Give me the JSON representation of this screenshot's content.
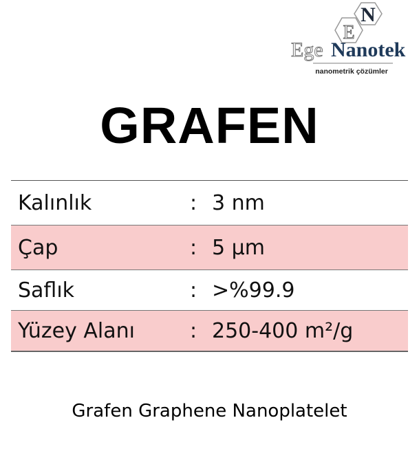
{
  "logo": {
    "text_ege": "Ege",
    "text_nanotek": "Nanotek",
    "tagline": "nanometrik çözümler",
    "letter_e": "E",
    "letter_n": "N",
    "color_navy": "#1f3a5a",
    "color_gray": "#888888"
  },
  "title": "GRAFEN",
  "specs": [
    {
      "label": "Kalınlık",
      "separator": ":",
      "value": "3 nm"
    },
    {
      "label": "Çap",
      "separator": ":",
      "value": "5 µm"
    },
    {
      "label": "Saflık",
      "separator": ":",
      "value": ">%99.9"
    },
    {
      "label": "Yüzey Alanı",
      "separator": ":",
      "value": "250-400 m²/g"
    }
  ],
  "highlight_color": "#f9cccc",
  "footer": "Grafen Graphene Nanoplatelet"
}
